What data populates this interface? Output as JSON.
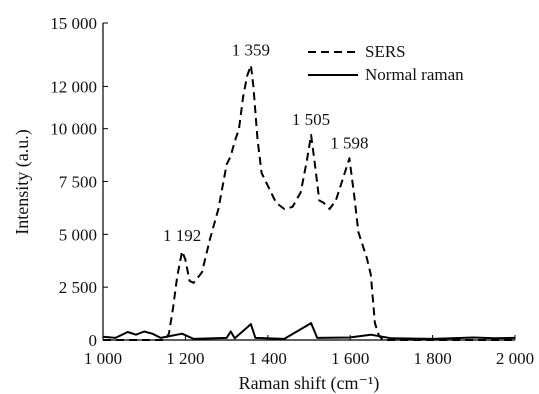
{
  "chart_data": {
    "type": "line",
    "title": "",
    "xlabel": "Raman shift (cm⁻¹)",
    "ylabel": "Intensity (a.u.)",
    "xlim": [
      1000,
      2000
    ],
    "ylim": [
      0,
      15000
    ],
    "xticks": [
      1000,
      1200,
      1400,
      1600,
      1800,
      2000
    ],
    "xtick_labels": [
      "1 000",
      "1 200",
      "1 400",
      "1 600",
      "1 800",
      "2 000"
    ],
    "yticks": [
      0,
      2500,
      5000,
      7500,
      10000,
      12000,
      15000
    ],
    "ytick_labels": [
      "0",
      "2 500",
      "5 000",
      "7 500",
      "10 000",
      "12 000",
      "15 000"
    ],
    "grid": false,
    "legend_position": "top-right",
    "series": [
      {
        "name": "SERS",
        "line_style": "dashed",
        "color": "#000000",
        "points": [
          [
            1000,
            0
          ],
          [
            1150,
            0
          ],
          [
            1160,
            300
          ],
          [
            1170,
            1500
          ],
          [
            1180,
            3000
          ],
          [
            1192,
            4200
          ],
          [
            1200,
            3800
          ],
          [
            1210,
            2800
          ],
          [
            1220,
            2700
          ],
          [
            1240,
            3200
          ],
          [
            1260,
            4800
          ],
          [
            1280,
            6200
          ],
          [
            1300,
            8300
          ],
          [
            1310,
            8700
          ],
          [
            1320,
            9400
          ],
          [
            1330,
            10000
          ],
          [
            1340,
            11500
          ],
          [
            1350,
            12500
          ],
          [
            1359,
            13000
          ],
          [
            1365,
            12000
          ],
          [
            1375,
            9500
          ],
          [
            1385,
            7900
          ],
          [
            1400,
            7300
          ],
          [
            1420,
            6500
          ],
          [
            1440,
            6200
          ],
          [
            1460,
            6300
          ],
          [
            1480,
            7000
          ],
          [
            1495,
            8500
          ],
          [
            1505,
            9700
          ],
          [
            1515,
            8200
          ],
          [
            1525,
            6600
          ],
          [
            1535,
            6500
          ],
          [
            1550,
            6200
          ],
          [
            1565,
            6600
          ],
          [
            1580,
            7500
          ],
          [
            1598,
            8600
          ],
          [
            1610,
            6800
          ],
          [
            1620,
            5100
          ],
          [
            1640,
            3900
          ],
          [
            1650,
            3100
          ],
          [
            1660,
            800
          ],
          [
            1670,
            200
          ],
          [
            1680,
            0
          ],
          [
            2000,
            0
          ]
        ]
      },
      {
        "name": "Normal raman",
        "line_style": "solid",
        "color": "#000000",
        "points": [
          [
            1000,
            150
          ],
          [
            1030,
            100
          ],
          [
            1060,
            380
          ],
          [
            1080,
            250
          ],
          [
            1100,
            400
          ],
          [
            1120,
            300
          ],
          [
            1140,
            100
          ],
          [
            1192,
            300
          ],
          [
            1220,
            50
          ],
          [
            1300,
            100
          ],
          [
            1310,
            400
          ],
          [
            1320,
            80
          ],
          [
            1359,
            750
          ],
          [
            1370,
            100
          ],
          [
            1440,
            50
          ],
          [
            1505,
            800
          ],
          [
            1520,
            100
          ],
          [
            1598,
            120
          ],
          [
            1650,
            250
          ],
          [
            1700,
            80
          ],
          [
            1800,
            50
          ],
          [
            1900,
            120
          ],
          [
            1950,
            80
          ],
          [
            2000,
            100
          ]
        ]
      }
    ],
    "annotations": [
      {
        "text": "1 192",
        "x": 1192,
        "y": 4200
      },
      {
        "text": "1 359",
        "x": 1359,
        "y": 13000
      },
      {
        "text": "1 505",
        "x": 1505,
        "y": 9700
      },
      {
        "text": "1 598",
        "x": 1598,
        "y": 8600
      }
    ]
  }
}
